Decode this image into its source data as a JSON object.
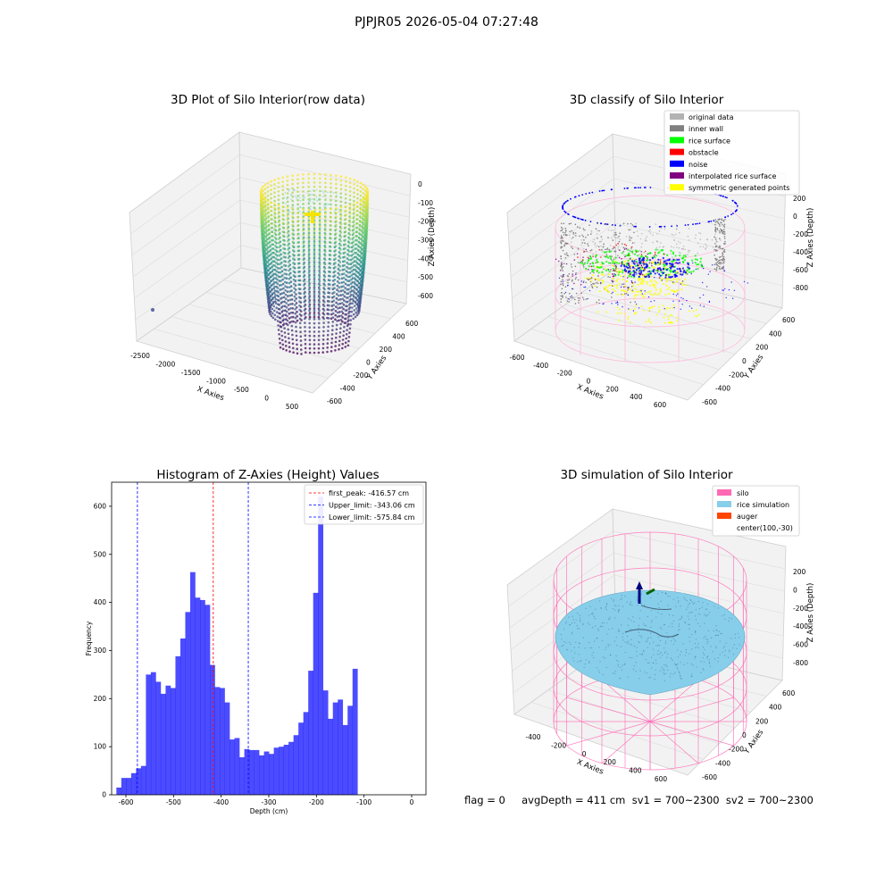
{
  "figure": {
    "suptitle": "PJPJR05 2026-05-04 07:27:48",
    "footer": "flag = 0     avgDepth = 411 cm  sv1 = 700~2300  sv2 = 700~2300"
  },
  "colors": {
    "hist_bar": "#0000ff",
    "first_peak": "#ff0000",
    "limits": "#0000ff",
    "silo": "#ff69b4",
    "rice_simulation": "#87ceeb",
    "auger": "#ff4500",
    "original_data": "#b3b3b3",
    "inner_wall": "#808080",
    "rice_surface": "#00ff00",
    "obstacle": "#ff0000",
    "noise": "#0000ff",
    "interpolated_rice_surface": "#800080",
    "symmetric_generated_points": "#ffff00"
  },
  "chart_data": [
    {
      "type": "scatter",
      "title": "3D Plot of Silo Interior(row data)",
      "xlabel": "X Axies",
      "ylabel": "Y Axies",
      "zlabel": "Z Axies (Depth)",
      "x_ticks": [
        "-2500",
        "-2000",
        "-1500",
        "-1000",
        "-500",
        "0",
        "500"
      ],
      "y_ticks": [
        "-600",
        "-400",
        "-200",
        "0",
        "200",
        "400",
        "600"
      ],
      "z_ticks": [
        "-600",
        "-500",
        "-400",
        "-300",
        "-200",
        "-100",
        "0"
      ],
      "colormap": "viridis"
    },
    {
      "type": "scatter",
      "title": "3D classify of Silo Interior",
      "xlabel": "X Axies",
      "ylabel": "Y Axies",
      "zlabel": "Z Axies (Depth)",
      "x_ticks": [
        "-600",
        "-400",
        "-200",
        "0",
        "200",
        "400",
        "600"
      ],
      "y_ticks": [
        "-600",
        "-400",
        "-200",
        "0",
        "200",
        "400",
        "600"
      ],
      "z_ticks": [
        "-800",
        "-600",
        "-400",
        "-200",
        "0",
        "200"
      ],
      "legend": [
        "original data",
        "inner wall",
        "rice surface",
        "obstacle",
        "noise",
        "interpolated rice surface",
        "symmetric generated points"
      ],
      "legend_position": "top-right"
    },
    {
      "type": "bar",
      "title": "Histogram of Z-Axies (Height) Values",
      "xlabel": "Depth (cm)",
      "ylabel": "Frequency",
      "xlim": [
        -630,
        30
      ],
      "ylim": [
        0,
        650
      ],
      "x_ticks": [
        -600,
        -500,
        -400,
        -300,
        -200,
        -100,
        0
      ],
      "y_ticks": [
        0,
        100,
        200,
        300,
        400,
        500,
        600
      ],
      "bin_start": -620,
      "bin_width": 10.33,
      "values": [
        15,
        35,
        35,
        45,
        55,
        60,
        250,
        255,
        235,
        210,
        227,
        222,
        288,
        325,
        380,
        463,
        410,
        405,
        395,
        270,
        224,
        222,
        192,
        115,
        118,
        78,
        95,
        93,
        93,
        82,
        90,
        85,
        98,
        100,
        104,
        110,
        124,
        150,
        172,
        258,
        420,
        620,
        217,
        158,
        192,
        198,
        145,
        185,
        262
      ],
      "vlines": [
        {
          "label": "first_peak: -416.57 cm",
          "x": -416.57,
          "color": "#ff0000"
        },
        {
          "label": "Upper_limit: -343.06 cm",
          "x": -343.06,
          "color": "#0000ff"
        },
        {
          "label": "Lower_limit: -575.84 cm",
          "x": -575.84,
          "color": "#0000ff"
        }
      ],
      "legend_position": "top-right"
    },
    {
      "type": "scatter",
      "title": "3D simulation of Silo Interior",
      "xlabel": "X Axies",
      "ylabel": "Y Axies",
      "zlabel": "Z Axies (Depth)",
      "x_ticks": [
        "-400",
        "-200",
        "0",
        "200",
        "400",
        "600"
      ],
      "y_ticks": [
        "-600",
        "-400",
        "-200",
        "0",
        "200",
        "400",
        "600"
      ],
      "z_ticks": [
        "-800",
        "-600",
        "-400",
        "-200",
        "0",
        "200"
      ],
      "legend": [
        "silo",
        "rice simulation",
        "auger",
        "center(100,-30)"
      ],
      "legend_position": "top-right"
    }
  ]
}
